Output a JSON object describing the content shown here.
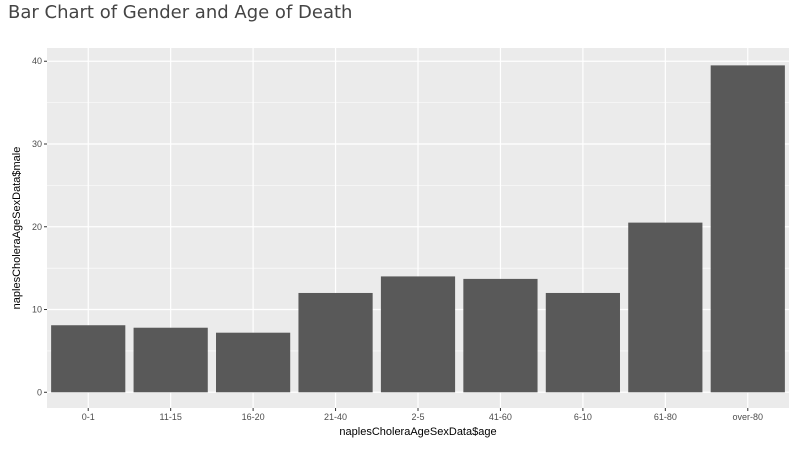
{
  "page": {
    "title": "Bar Chart of Gender and Age of Death"
  },
  "chart_data": {
    "type": "bar",
    "title": "Bar Chart of Gender and Age of Death",
    "xlabel": "naplesCholeraAgeSexData$age",
    "ylabel": "naplesCholeraAgeSexData$male",
    "categories": [
      "0-1",
      "11-15",
      "16-20",
      "21-40",
      "2-5",
      "41-60",
      "6-10",
      "61-80",
      "over-80"
    ],
    "values": [
      8.1,
      7.8,
      7.2,
      12.0,
      14.0,
      13.7,
      12.0,
      20.5,
      39.5
    ],
    "ylim": [
      -1.9,
      41.6
    ],
    "yticks": [
      0,
      10,
      20,
      30,
      40
    ],
    "grid": true,
    "legend": "none",
    "bar_color": "#595959",
    "panel_color": "#ebebeb",
    "grid_color": "#ffffff"
  }
}
